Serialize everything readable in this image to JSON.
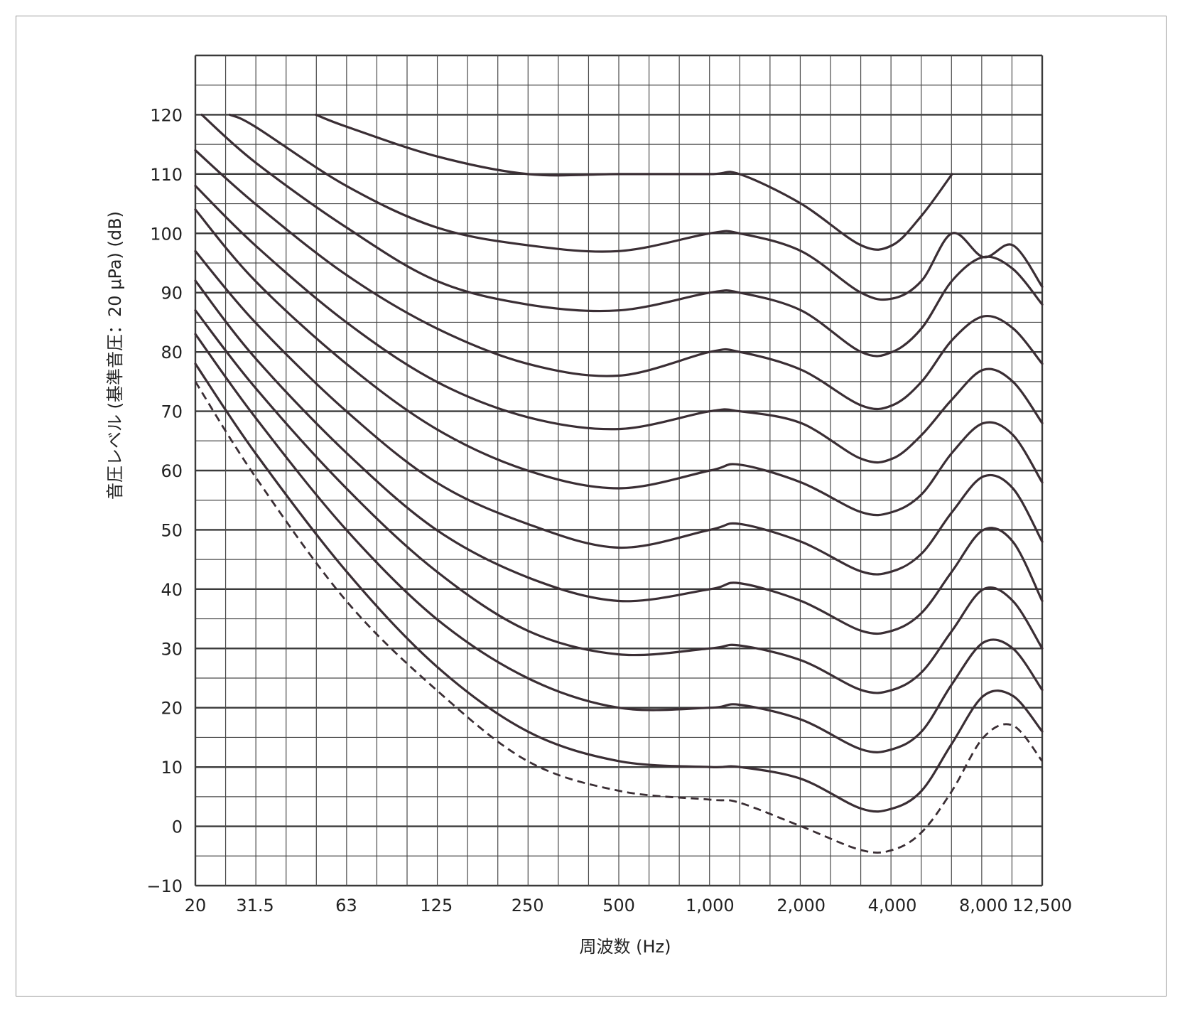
{
  "chart_data": {
    "type": "line",
    "title": "",
    "xlabel": "周波数 (Hz)",
    "ylabel": "音圧レベル (基準音圧：20 μPa) (dB)",
    "x_scale": "log",
    "xlim": [
      20,
      12500
    ],
    "ylim": [
      -10,
      130
    ],
    "grid": true,
    "legend": "none",
    "x_tick_values": [
      20,
      31.5,
      63,
      125,
      250,
      500,
      1000,
      2000,
      4000,
      8000,
      12500
    ],
    "x_tick_labels": [
      "20",
      "31.5",
      "63",
      "125",
      "250",
      "500",
      "1,000",
      "2,000",
      "4,000",
      "8,000",
      "12,500"
    ],
    "y_tick_values": [
      -10,
      0,
      10,
      20,
      30,
      40,
      50,
      60,
      70,
      80,
      90,
      100,
      110,
      120
    ],
    "y_tick_labels": [
      "−10",
      "0",
      "10",
      "20",
      "30",
      "40",
      "50",
      "60",
      "70",
      "80",
      "90",
      "100",
      "110",
      "120"
    ],
    "series": [
      {
        "style": "dashed",
        "x": [
          20,
          31.5,
          63,
          125,
          250,
          500,
          1000,
          1250,
          2000,
          3150,
          4000,
          5000,
          6300,
          8000,
          10000,
          12500
        ],
        "y": [
          75,
          59,
          38,
          23,
          11,
          6,
          4.5,
          4,
          0,
          -4,
          -4,
          -1,
          6,
          15,
          17,
          11
        ]
      },
      {
        "style": "solid",
        "x": [
          20,
          31.5,
          63,
          125,
          250,
          500,
          1000,
          1250,
          2000,
          3150,
          4000,
          5000,
          6300,
          8000,
          10000,
          12500
        ],
        "y": [
          78,
          63,
          43,
          27,
          16,
          11,
          10,
          10,
          8,
          3,
          3,
          6,
          14,
          22,
          22,
          16
        ]
      },
      {
        "style": "solid",
        "x": [
          20,
          31.5,
          63,
          125,
          250,
          500,
          1000,
          1250,
          2000,
          3150,
          4000,
          5000,
          6300,
          8000,
          10000,
          12500
        ],
        "y": [
          83,
          69,
          50,
          35,
          25,
          20,
          20,
          20.5,
          18,
          13,
          13,
          16,
          24,
          31,
          30,
          23
        ]
      },
      {
        "style": "solid",
        "x": [
          20,
          31.5,
          63,
          125,
          250,
          500,
          1000,
          1250,
          2000,
          3150,
          4000,
          5000,
          6300,
          8000,
          10000,
          12500
        ],
        "y": [
          87,
          74,
          57,
          43,
          33,
          29,
          30,
          30.5,
          28,
          23,
          23,
          26,
          33,
          40,
          38,
          30
        ]
      },
      {
        "style": "solid",
        "x": [
          20,
          31.5,
          63,
          125,
          250,
          500,
          1000,
          1250,
          2000,
          3150,
          4000,
          5000,
          6300,
          8000,
          10000,
          12500
        ],
        "y": [
          92,
          79,
          63,
          50,
          42,
          38,
          40,
          41,
          38,
          33,
          33,
          36,
          43,
          50,
          48,
          38
        ]
      },
      {
        "style": "solid",
        "x": [
          20,
          31.5,
          63,
          125,
          250,
          500,
          1000,
          1250,
          2000,
          3150,
          4000,
          5000,
          6300,
          8000,
          10000,
          12500
        ],
        "y": [
          97,
          85,
          70,
          58,
          51,
          47,
          50,
          51,
          48,
          43,
          43,
          46,
          53,
          59,
          57,
          48
        ]
      },
      {
        "style": "solid",
        "x": [
          20,
          31.5,
          63,
          125,
          250,
          500,
          1000,
          1250,
          2000,
          3150,
          4000,
          5000,
          6300,
          8000,
          10000,
          12500
        ],
        "y": [
          104,
          92,
          78,
          67,
          60,
          57,
          60,
          61,
          58,
          53,
          53,
          56,
          63,
          68,
          66,
          58
        ]
      },
      {
        "style": "solid",
        "x": [
          20,
          31.5,
          63,
          125,
          250,
          500,
          1000,
          1250,
          2000,
          3150,
          4000,
          5000,
          6300,
          8000,
          10000,
          12500
        ],
        "y": [
          108,
          98,
          85,
          75,
          69,
          67,
          70,
          70,
          68,
          62,
          62,
          66,
          72,
          77,
          75,
          68
        ]
      },
      {
        "style": "solid",
        "x": [
          20,
          31.5,
          63,
          125,
          250,
          500,
          1000,
          1250,
          2000,
          3150,
          4000,
          5000,
          6300,
          8000,
          10000,
          12500
        ],
        "y": [
          114,
          105,
          93,
          84,
          78,
          76,
          80,
          80,
          77,
          71,
          71,
          75,
          82,
          86,
          84,
          78
        ]
      },
      {
        "style": "solid",
        "x": [
          21,
          31.5,
          63,
          125,
          250,
          500,
          1000,
          1250,
          2000,
          3150,
          4000,
          5000,
          6300,
          8000,
          10000,
          12500
        ],
        "y": [
          120,
          112,
          101,
          92,
          88,
          87,
          90,
          90,
          87,
          80,
          80,
          84,
          92,
          96,
          94,
          88
        ]
      },
      {
        "style": "solid",
        "x": [
          26,
          31.5,
          63,
          125,
          250,
          500,
          1000,
          1250,
          2000,
          3150,
          4000,
          5000,
          6300,
          8000,
          10000,
          12500
        ],
        "y": [
          120,
          118,
          108,
          101,
          98,
          97,
          100,
          100,
          97,
          90,
          89,
          92,
          100,
          96,
          98,
          91
        ]
      },
      {
        "style": "solid",
        "x": [
          50,
          63,
          125,
          250,
          500,
          1000,
          1250,
          2000,
          3150,
          4000,
          5000,
          6300
        ],
        "y": [
          120,
          118,
          113,
          110,
          110,
          110,
          110,
          105,
          98,
          98,
          103,
          110
        ]
      }
    ]
  }
}
